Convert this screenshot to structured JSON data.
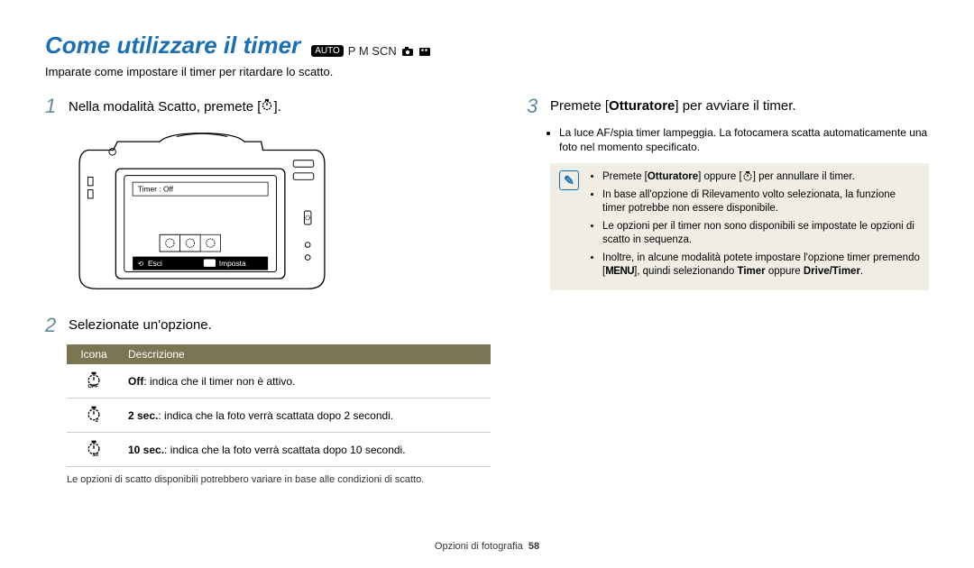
{
  "header": {
    "title": "Come utilizzare il timer",
    "title_color": "#1a6fb5",
    "modes_auto": "AUTO",
    "modes_text": "P M SCN",
    "subtitle": "Imparate come impostare il timer per ritardare lo scatto."
  },
  "left": {
    "step1_num": "1",
    "step1_text": "Nella modalità Scatto, premete [",
    "step1_text_end": "].",
    "camera_screen": {
      "timer_label": "Timer : Off",
      "esc_label": "Esci",
      "set_label": "Imposta"
    },
    "step2_num": "2",
    "step2_text": "Selezionate un'opzione.",
    "table": {
      "header_icon": "Icona",
      "header_desc": "Descrizione",
      "header_bg": "#7c7554",
      "rows": [
        {
          "icon_sub": "OFF",
          "desc_bold": "Off",
          "desc_rest": ": indica che il timer non è attivo."
        },
        {
          "icon_sub": "2",
          "desc_bold": "2 sec.",
          "desc_rest": ": indica che la foto verrà scattata dopo 2 secondi."
        },
        {
          "icon_sub": "10",
          "desc_bold": "10 sec.",
          "desc_rest": ": indica che la foto verrà scattata dopo 10 secondi."
        }
      ]
    },
    "note": "Le opzioni di scatto disponibili potrebbero variare in base alle condizioni di scatto."
  },
  "right": {
    "step3_num": "3",
    "step3_text_a": "Premete [",
    "step3_text_b": "Otturatore",
    "step3_text_c": "] per avviare il timer.",
    "step3_sub": "La luce AF/spia timer lampeggia. La fotocamera scatta automaticamente una foto nel momento specificato.",
    "info_box_bg": "#efede4",
    "info": [
      {
        "pre": "Premete [",
        "b1": "Otturatore",
        "mid": "] oppure [",
        "post": "] per annullare il timer."
      },
      {
        "full": "In base all'opzione di Rilevamento volto selezionata, la funzione timer potrebbe non essere disponibile."
      },
      {
        "full": "Le opzioni per il timer non sono disponibili se impostate le opzioni di scatto in sequenza."
      },
      {
        "pre": "Inoltre, in alcune modalità potete impostare l'opzione timer premendo [",
        "menu": "MENU",
        "mid2": "], quindi selezionando ",
        "b2": "Timer",
        "mid3": " oppure ",
        "b3": "Drive/Timer",
        "end": "."
      }
    ]
  },
  "footer": {
    "section": "Opzioni di fotografia",
    "page": "58"
  }
}
